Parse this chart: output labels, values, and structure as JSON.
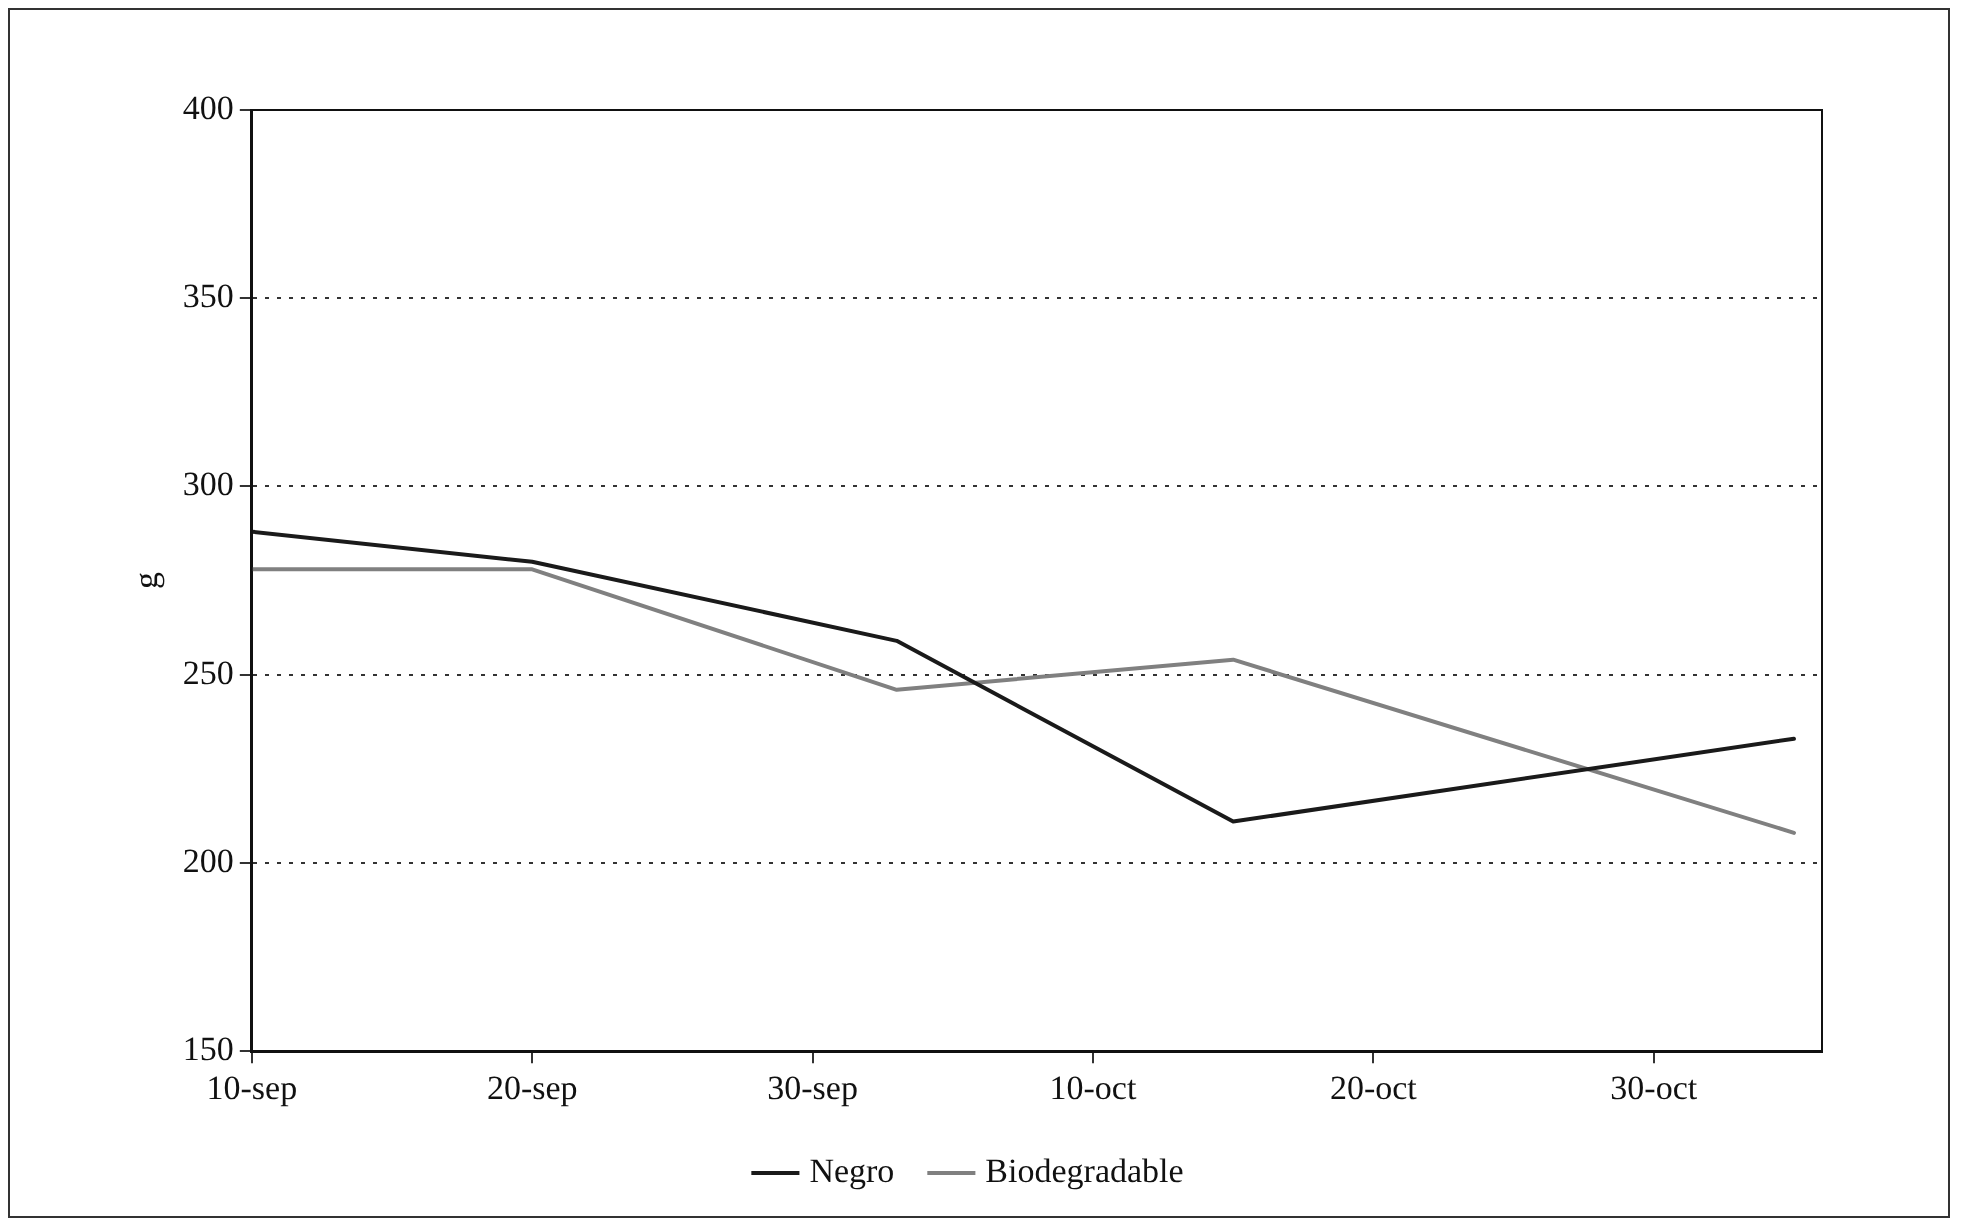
{
  "chart_data": {
    "type": "line",
    "ylabel": "g",
    "x": [
      "--09-10",
      "--09-20",
      "--10-03",
      "--10-15",
      "--11-04"
    ],
    "series": [
      {
        "name": "Negro",
        "color": "#1a1a1a",
        "values": [
          288,
          280,
          259,
          211,
          233
        ]
      },
      {
        "name": "Biodegradable",
        "color": "#808080",
        "values": [
          278,
          278,
          246,
          254,
          208
        ]
      }
    ],
    "xlim": [
      "--09-10",
      "--11-05"
    ],
    "xticks": [
      {
        "value": "--09-10",
        "label": "10-sep"
      },
      {
        "value": "--09-20",
        "label": "20-sep"
      },
      {
        "value": "--09-30",
        "label": "30-sep"
      },
      {
        "value": "--10-10",
        "label": "10-oct"
      },
      {
        "value": "--10-20",
        "label": "20-oct"
      },
      {
        "value": "--10-30",
        "label": "30-oct"
      }
    ],
    "ylim": [
      150,
      400
    ],
    "yticks": [
      150,
      200,
      250,
      300,
      350,
      400
    ],
    "grid": "y",
    "legend": "bottom",
    "marker": "none",
    "line_style": "solid"
  }
}
